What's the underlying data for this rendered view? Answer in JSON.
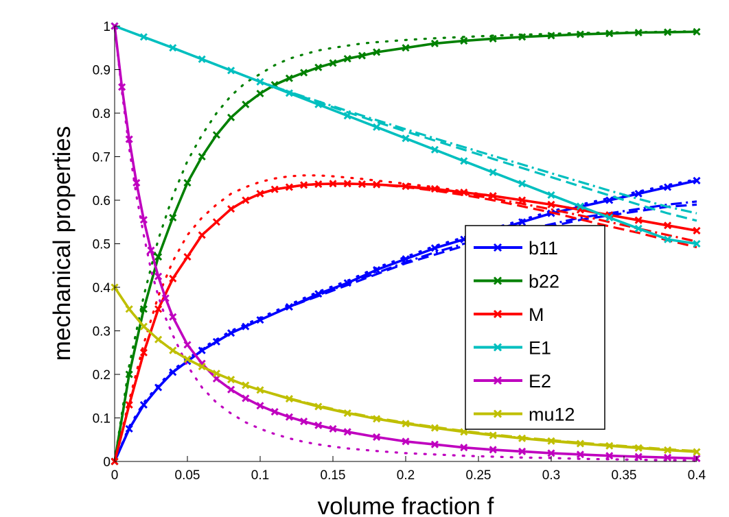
{
  "chart_data": {
    "type": "line",
    "title": "",
    "xlabel": "volume fraction f",
    "ylabel": "mechanical properties",
    "xlim": [
      0,
      0.4
    ],
    "ylim": [
      0,
      1
    ],
    "x_ticks": [
      0,
      0.05,
      0.1,
      0.15,
      0.2,
      0.25,
      0.3,
      0.35,
      0.4
    ],
    "x_tick_labels": [
      "0",
      "0.05",
      "0.1",
      "0.15",
      "0.2",
      "0.25",
      "0.3",
      "0.35",
      "0.4"
    ],
    "y_ticks": [
      0,
      0.1,
      0.2,
      0.3,
      0.4,
      0.5,
      0.6,
      0.7,
      0.8,
      0.9,
      1
    ],
    "y_tick_labels": [
      "0",
      "0.1",
      "0.2",
      "0.3",
      "0.4",
      "0.5",
      "0.6",
      "0.7",
      "0.8",
      "0.9",
      "1"
    ],
    "grid": false,
    "legend_position": "right-middle",
    "line_styles": [
      "solid with x markers",
      "dashed",
      "dash-dot",
      "dotted"
    ],
    "series": [
      {
        "name": "b11",
        "color": "#0000ff",
        "x": [
          0,
          0.01,
          0.02,
          0.03,
          0.04,
          0.05,
          0.06,
          0.07,
          0.08,
          0.09,
          0.1,
          0.12,
          0.14,
          0.16,
          0.18,
          0.2,
          0.22,
          0.24,
          0.26,
          0.28,
          0.3,
          0.32,
          0.34,
          0.36,
          0.38,
          0.4
        ],
        "y": [
          0,
          0.075,
          0.13,
          0.17,
          0.205,
          0.23,
          0.255,
          0.275,
          0.295,
          0.31,
          0.325,
          0.355,
          0.385,
          0.41,
          0.44,
          0.465,
          0.49,
          0.51,
          0.53,
          0.55,
          0.57,
          0.585,
          0.6,
          0.615,
          0.63,
          0.645
        ],
        "variants": [
          {
            "style": "dashed",
            "y": [
              0,
              0.075,
              0.13,
              0.17,
              0.205,
              0.23,
              0.255,
              0.275,
              0.295,
              0.31,
              0.325,
              0.355,
              0.38,
              0.405,
              0.43,
              0.455,
              0.475,
              0.495,
              0.51,
              0.525,
              0.54,
              0.555,
              0.565,
              0.575,
              0.585,
              0.59
            ]
          },
          {
            "style": "dash-dot",
            "y": [
              0,
              0.075,
              0.13,
              0.17,
              0.205,
              0.23,
              0.255,
              0.275,
              0.295,
              0.31,
              0.325,
              0.355,
              0.382,
              0.408,
              0.433,
              0.458,
              0.48,
              0.5,
              0.515,
              0.53,
              0.545,
              0.56,
              0.57,
              0.58,
              0.59,
              0.597
            ]
          },
          {
            "style": "dotted",
            "y": [
              0,
              0.08,
              0.135,
              0.175,
              0.21,
              0.235,
              0.26,
              0.28,
              0.3,
              0.315,
              0.33,
              0.36,
              0.39,
              0.415,
              0.445,
              0.47,
              0.495,
              0.515,
              0.535,
              0.555,
              0.575,
              0.59,
              0.605,
              0.62,
              0.635,
              0.648
            ]
          }
        ]
      },
      {
        "name": "b22",
        "color": "#008000",
        "x": [
          0,
          0.01,
          0.02,
          0.03,
          0.04,
          0.05,
          0.06,
          0.07,
          0.08,
          0.09,
          0.1,
          0.11,
          0.12,
          0.13,
          0.14,
          0.15,
          0.16,
          0.17,
          0.18,
          0.2,
          0.22,
          0.24,
          0.26,
          0.28,
          0.3,
          0.32,
          0.34,
          0.36,
          0.38,
          0.4
        ],
        "y": [
          0,
          0.2,
          0.35,
          0.47,
          0.56,
          0.64,
          0.7,
          0.75,
          0.79,
          0.82,
          0.845,
          0.865,
          0.88,
          0.893,
          0.905,
          0.915,
          0.925,
          0.932,
          0.94,
          0.95,
          0.96,
          0.966,
          0.971,
          0.975,
          0.978,
          0.981,
          0.983,
          0.985,
          0.986,
          0.987
        ],
        "variants": [
          {
            "style": "dotted",
            "y": [
              0,
              0.22,
              0.38,
              0.51,
              0.61,
              0.69,
              0.75,
              0.8,
              0.84,
              0.87,
              0.89,
              0.91,
              0.925,
              0.935,
              0.944,
              0.95,
              0.955,
              0.96,
              0.963,
              0.968,
              0.972,
              0.975,
              0.978,
              0.98,
              0.982,
              0.984,
              0.985,
              0.986,
              0.987,
              0.988
            ]
          }
        ]
      },
      {
        "name": "M",
        "color": "#ff0000",
        "x": [
          0,
          0.01,
          0.02,
          0.03,
          0.04,
          0.05,
          0.06,
          0.07,
          0.08,
          0.09,
          0.1,
          0.11,
          0.12,
          0.13,
          0.14,
          0.15,
          0.16,
          0.17,
          0.18,
          0.2,
          0.22,
          0.24,
          0.26,
          0.28,
          0.3,
          0.32,
          0.34,
          0.36,
          0.38,
          0.4
        ],
        "y": [
          0,
          0.13,
          0.25,
          0.35,
          0.42,
          0.47,
          0.52,
          0.55,
          0.58,
          0.6,
          0.615,
          0.625,
          0.63,
          0.635,
          0.637,
          0.638,
          0.638,
          0.637,
          0.636,
          0.632,
          0.626,
          0.618,
          0.61,
          0.6,
          0.59,
          0.578,
          0.566,
          0.554,
          0.542,
          0.53
        ],
        "variants": [
          {
            "style": "dashed",
            "y": [
              0,
              0.13,
              0.25,
              0.35,
              0.42,
              0.47,
              0.52,
              0.55,
              0.58,
              0.6,
              0.615,
              0.625,
              0.63,
              0.635,
              0.637,
              0.638,
              0.638,
              0.637,
              0.636,
              0.63,
              0.622,
              0.612,
              0.6,
              0.586,
              0.572,
              0.556,
              0.54,
              0.525,
              0.508,
              0.492
            ]
          },
          {
            "style": "dash-dot",
            "y": [
              0,
              0.13,
              0.25,
              0.35,
              0.42,
              0.47,
              0.52,
              0.55,
              0.58,
              0.6,
              0.615,
              0.625,
              0.63,
              0.635,
              0.637,
              0.638,
              0.638,
              0.637,
              0.636,
              0.631,
              0.624,
              0.615,
              0.604,
              0.592,
              0.579,
              0.565,
              0.55,
              0.535,
              0.52,
              0.505
            ]
          },
          {
            "style": "dotted",
            "y": [
              0,
              0.14,
              0.27,
              0.38,
              0.46,
              0.52,
              0.56,
              0.59,
              0.615,
              0.63,
              0.642,
              0.65,
              0.655,
              0.657,
              0.657,
              0.655,
              0.652,
              0.649,
              0.645,
              0.638,
              0.63,
              0.62,
              0.61,
              0.6,
              0.59,
              0.578,
              0.566,
              0.554,
              0.542,
              0.53
            ]
          }
        ]
      },
      {
        "name": "E1",
        "color": "#00bfbf",
        "x": [
          0,
          0.02,
          0.04,
          0.06,
          0.08,
          0.1,
          0.12,
          0.14,
          0.16,
          0.18,
          0.2,
          0.22,
          0.24,
          0.26,
          0.28,
          0.3,
          0.32,
          0.34,
          0.36,
          0.38,
          0.4
        ],
        "y": [
          1,
          0.975,
          0.95,
          0.924,
          0.898,
          0.872,
          0.846,
          0.82,
          0.794,
          0.768,
          0.742,
          0.716,
          0.69,
          0.664,
          0.638,
          0.612,
          0.586,
          0.56,
          0.535,
          0.51,
          0.5
        ],
        "variants": [
          {
            "style": "dashed",
            "y": [
              1,
              0.975,
              0.95,
              0.924,
              0.898,
              0.872,
              0.848,
              0.825,
              0.802,
              0.78,
              0.758,
              0.737,
              0.716,
              0.695,
              0.674,
              0.653,
              0.632,
              0.611,
              0.59,
              0.57,
              0.553
            ]
          },
          {
            "style": "dash-dot",
            "y": [
              1,
              0.975,
              0.95,
              0.924,
              0.898,
              0.872,
              0.849,
              0.827,
              0.805,
              0.784,
              0.763,
              0.742,
              0.722,
              0.702,
              0.682,
              0.662,
              0.642,
              0.622,
              0.603,
              0.585,
              0.57
            ]
          }
        ]
      },
      {
        "name": "E2",
        "color": "#bf00bf",
        "x": [
          0,
          0.005,
          0.01,
          0.015,
          0.02,
          0.025,
          0.03,
          0.035,
          0.04,
          0.05,
          0.06,
          0.07,
          0.08,
          0.09,
          0.1,
          0.11,
          0.12,
          0.13,
          0.14,
          0.15,
          0.16,
          0.18,
          0.2,
          0.22,
          0.24,
          0.26,
          0.28,
          0.3,
          0.32,
          0.34,
          0.36,
          0.38,
          0.4
        ],
        "y": [
          1,
          0.86,
          0.74,
          0.64,
          0.555,
          0.485,
          0.425,
          0.375,
          0.332,
          0.268,
          0.225,
          0.19,
          0.165,
          0.145,
          0.128,
          0.114,
          0.102,
          0.092,
          0.083,
          0.075,
          0.068,
          0.056,
          0.046,
          0.039,
          0.032,
          0.027,
          0.023,
          0.019,
          0.016,
          0.013,
          0.011,
          0.009,
          0.007
        ],
        "variants": [
          {
            "style": "dotted",
            "y": [
              1,
              0.85,
              0.72,
              0.61,
              0.52,
              0.44,
              0.38,
              0.33,
              0.29,
              0.22,
              0.17,
              0.135,
              0.11,
              0.09,
              0.075,
              0.063,
              0.053,
              0.045,
              0.039,
              0.034,
              0.03,
              0.024,
              0.019,
              0.016,
              0.013,
              0.011,
              0.009,
              0.008,
              0.006,
              0.005,
              0.004,
              0.003,
              0.002
            ]
          }
        ]
      },
      {
        "name": "mu12",
        "color": "#bfbf00",
        "x": [
          0,
          0.01,
          0.02,
          0.03,
          0.04,
          0.05,
          0.06,
          0.07,
          0.08,
          0.09,
          0.1,
          0.12,
          0.14,
          0.16,
          0.18,
          0.2,
          0.22,
          0.24,
          0.26,
          0.28,
          0.3,
          0.32,
          0.34,
          0.36,
          0.38,
          0.4
        ],
        "y": [
          0.4,
          0.35,
          0.31,
          0.28,
          0.255,
          0.235,
          0.218,
          0.202,
          0.188,
          0.175,
          0.164,
          0.144,
          0.126,
          0.111,
          0.098,
          0.087,
          0.077,
          0.068,
          0.06,
          0.053,
          0.047,
          0.041,
          0.036,
          0.031,
          0.026,
          0.022
        ],
        "variants": [
          {
            "style": "dashed",
            "y": [
              0.4,
              0.35,
              0.31,
              0.28,
              0.255,
              0.235,
              0.218,
              0.202,
              0.188,
              0.175,
              0.164,
              0.145,
              0.128,
              0.113,
              0.1,
              0.089,
              0.079,
              0.07,
              0.062,
              0.055,
              0.049,
              0.043,
              0.038,
              0.033,
              0.028,
              0.024
            ]
          },
          {
            "style": "dash-dot",
            "y": [
              0.4,
              0.35,
              0.31,
              0.28,
              0.255,
              0.235,
              0.218,
              0.202,
              0.188,
              0.175,
              0.164,
              0.145,
              0.127,
              0.112,
              0.099,
              0.088,
              0.078,
              0.069,
              0.061,
              0.054,
              0.048,
              0.042,
              0.037,
              0.032,
              0.027,
              0.023
            ]
          }
        ]
      }
    ]
  }
}
